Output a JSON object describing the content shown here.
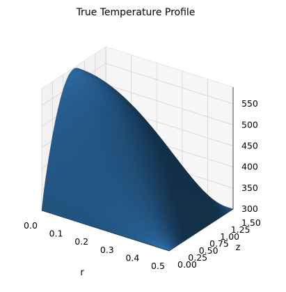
{
  "chart_data": {
    "type": "surface",
    "title": "True Temperature Profile",
    "xlabel": "r",
    "ylabel": "z",
    "zlabel": "",
    "x_range": [
      0.0,
      0.5
    ],
    "y_range": [
      0.0,
      1.5
    ],
    "z_range": [
      300,
      590
    ],
    "x_ticks": [
      "0.0",
      "0.1",
      "0.2",
      "0.3",
      "0.4",
      "0.5"
    ],
    "y_ticks": [
      "0.00",
      "0.25",
      "0.50",
      "0.75",
      "1.00",
      "1.25",
      "1.50"
    ],
    "z_ticks": [
      "300",
      "350",
      "400",
      "450",
      "500",
      "550"
    ],
    "surface": {
      "description_formula": "T(r,z) = 300 + 287 * (1 - (r/0.5)^2) * sin(pi*z/1.5)^0.85",
      "peak_value": 587,
      "base_value": 300
    },
    "color": "#2b6aa3",
    "grid": true
  }
}
